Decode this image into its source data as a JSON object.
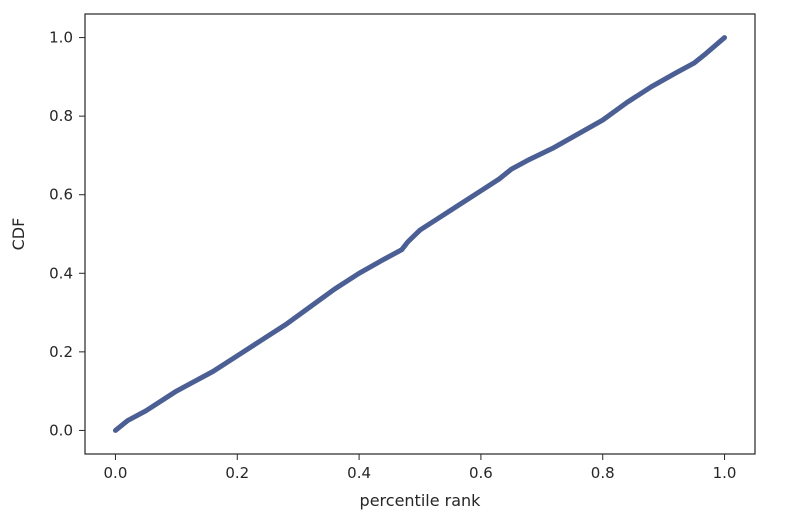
{
  "chart_data": {
    "type": "line",
    "title": "",
    "xlabel": "percentile rank",
    "ylabel": "CDF",
    "xlim": [
      -0.05,
      1.05
    ],
    "ylim": [
      -0.06,
      1.06
    ],
    "xticks": [
      0.0,
      0.2,
      0.4,
      0.6,
      0.8,
      1.0
    ],
    "xtick_labels": [
      "0.0",
      "0.2",
      "0.4",
      "0.6",
      "0.8",
      "1.0"
    ],
    "yticks": [
      0.0,
      0.2,
      0.4,
      0.6,
      0.8,
      1.0
    ],
    "ytick_labels": [
      "0.0",
      "0.2",
      "0.4",
      "0.6",
      "0.8",
      "1.0"
    ],
    "grid": false,
    "legend": "none",
    "line_color": "#4c5f94",
    "axis_color": "#262626",
    "series": [
      {
        "x": [
          0.0,
          0.02,
          0.05,
          0.08,
          0.1,
          0.13,
          0.16,
          0.2,
          0.24,
          0.28,
          0.32,
          0.36,
          0.4,
          0.44,
          0.47,
          0.48,
          0.5,
          0.53,
          0.56,
          0.6,
          0.63,
          0.65,
          0.68,
          0.72,
          0.76,
          0.8,
          0.84,
          0.88,
          0.92,
          0.95,
          0.97,
          1.0
        ],
        "y": [
          0.0,
          0.025,
          0.05,
          0.08,
          0.1,
          0.125,
          0.15,
          0.19,
          0.23,
          0.27,
          0.315,
          0.36,
          0.4,
          0.435,
          0.46,
          0.48,
          0.51,
          0.54,
          0.57,
          0.61,
          0.64,
          0.665,
          0.69,
          0.72,
          0.755,
          0.79,
          0.835,
          0.875,
          0.91,
          0.935,
          0.96,
          1.0
        ]
      }
    ]
  }
}
